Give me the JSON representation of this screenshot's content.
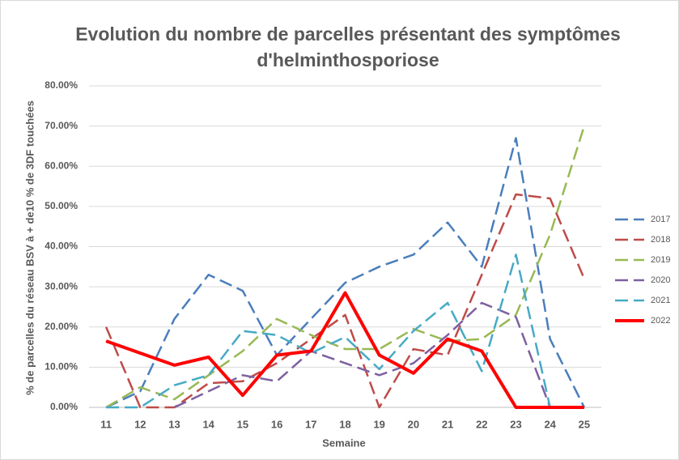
{
  "chart_data": {
    "type": "line",
    "title": "Evolution du nombre de parcelles présentant des symptômes d'helminthosporiose",
    "x_label": "Semaine",
    "y_label": "% de parcelles du réseau BSV à + de10 % de 3DF touchées",
    "categories": [
      11,
      12,
      13,
      14,
      15,
      16,
      17,
      18,
      19,
      20,
      21,
      22,
      23,
      24,
      25
    ],
    "ylim": [
      0,
      80
    ],
    "yticks": [
      {
        "value": 0,
        "label": "0.00%"
      },
      {
        "value": 10,
        "label": "10.00%"
      },
      {
        "value": 20,
        "label": "20.00%"
      },
      {
        "value": 30,
        "label": "30.00%"
      },
      {
        "value": 40,
        "label": "40.00%"
      },
      {
        "value": 50,
        "label": "50.00%"
      },
      {
        "value": 60,
        "label": "60.00%"
      },
      {
        "value": 70,
        "label": "70.00%"
      },
      {
        "value": 80,
        "label": "80.00%"
      }
    ],
    "grid": true,
    "legend": "right",
    "series": [
      {
        "name": "2017",
        "color": "#4a7ebb",
        "line_style": "dashed",
        "values": [
          0,
          4,
          22,
          33,
          29,
          13,
          22,
          31,
          35,
          38,
          46,
          35,
          67,
          17,
          0
        ]
      },
      {
        "name": "2018",
        "color": "#be4b48",
        "line_style": "dashed",
        "values": [
          20,
          0,
          0,
          6,
          6.5,
          11,
          17,
          23,
          0,
          14.5,
          13,
          33,
          53,
          52,
          32
        ]
      },
      {
        "name": "2019",
        "color": "#98b954",
        "line_style": "dashed",
        "values": [
          0,
          5,
          2,
          8,
          14,
          22,
          18,
          14.5,
          14.5,
          19.5,
          16.5,
          17,
          23,
          43,
          70
        ]
      },
      {
        "name": "2020",
        "color": "#7d60a0",
        "line_style": "dashed",
        "values": [
          null,
          null,
          0,
          4,
          8,
          6.5,
          14,
          11,
          8,
          11,
          18,
          26,
          22.5,
          0,
          null
        ]
      },
      {
        "name": "2021",
        "color": "#46aac5",
        "line_style": "dashed",
        "values": [
          0,
          0,
          5.5,
          8,
          19,
          18,
          13.5,
          17.5,
          9.5,
          19,
          26,
          9,
          38,
          0,
          null
        ]
      },
      {
        "name": "2022",
        "color": "#ff0000",
        "line_style": "solid",
        "values": [
          16.5,
          13.5,
          10.5,
          12.5,
          3,
          13,
          14,
          28.5,
          13,
          8.5,
          17,
          14,
          0,
          0,
          0
        ]
      }
    ]
  }
}
